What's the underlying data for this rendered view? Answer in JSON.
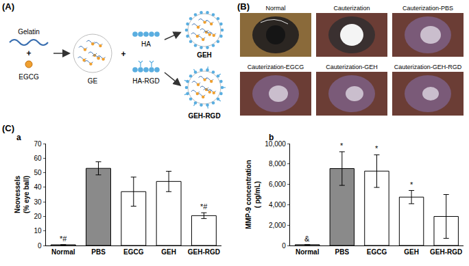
{
  "diagram": {
    "label": "(A)",
    "gelatin": "Gelatin",
    "plus": "+",
    "egcg": "EGCG",
    "ge": "GE",
    "ha": "HA",
    "ha_rgd": "HA-RGD",
    "geh": "GEH",
    "geh_rgd": "GEH-RGD"
  },
  "photos": {
    "label": "(B)",
    "captions": [
      "Normal",
      "Cauterization",
      "Cauterization-PBS",
      "Cauterization-EGCG",
      "Cauterization-GEH",
      "Cauterization-GEH-RGD"
    ]
  },
  "chart_panel_label": "(C)",
  "chart_data": [
    {
      "type": "bar",
      "panel_label": "a",
      "categories": [
        "Normal",
        "PBS",
        "EGCG",
        "GEH",
        "GEH-RGD"
      ],
      "values": [
        0.5,
        53,
        37,
        44,
        20.5
      ],
      "errors": [
        null,
        4.5,
        10,
        7,
        2
      ],
      "colors": [
        "#ffffff",
        "#8a8a8a",
        "#ffffff",
        "#ffffff",
        "#ffffff"
      ],
      "ylabel": [
        "Neovessels",
        "(% eye ball)"
      ],
      "ylim": [
        0,
        70
      ],
      "yticks": [
        0,
        10,
        20,
        30,
        40,
        50,
        60,
        70
      ],
      "grid": false,
      "annotations": [
        {
          "category": "Normal",
          "text": "*#"
        },
        {
          "category": "GEH-RGD",
          "text": "*#"
        }
      ]
    },
    {
      "type": "bar",
      "panel_label": "b",
      "categories": [
        "Normal",
        "PBS",
        "EGCG",
        "GEH",
        "GEH-RGD"
      ],
      "values": [
        80,
        7550,
        7300,
        4750,
        2850
      ],
      "errors": [
        null,
        1650,
        1600,
        650,
        2150
      ],
      "colors": [
        "#ffffff",
        "#8a8a8a",
        "#ffffff",
        "#ffffff",
        "#ffffff"
      ],
      "ylabel": [
        "MMP-9 concentration",
        "( pg/mL)"
      ],
      "ylim": [
        0,
        10000
      ],
      "yticks": [
        0,
        {
          "value": 2000,
          "label": "2,000"
        },
        {
          "value": 4000,
          "label": "4,000"
        },
        {
          "value": 6000,
          "label": "6,000"
        },
        {
          "value": 8000,
          "label": "8,000"
        },
        {
          "value": 10000,
          "label": "10,000"
        }
      ],
      "grid": false,
      "annotations": [
        {
          "category": "Normal",
          "text": "&"
        },
        {
          "category": "PBS",
          "text": "*"
        },
        {
          "category": "EGCG",
          "text": "*"
        },
        {
          "category": "GEH",
          "text": "*"
        }
      ]
    }
  ]
}
